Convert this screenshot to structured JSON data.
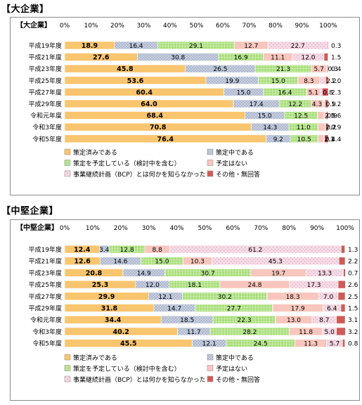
{
  "headings": {
    "large": "【大企業】",
    "mid": "【中堅企業】"
  },
  "patterns": [
    "#f9c56e",
    "#c8d0e2",
    "#a9df7b",
    "#f8c6bd",
    "#f7dbe6",
    "#d05a57"
  ],
  "chart_data": [
    {
      "type": "bar",
      "orientation": "horizontal-stacked-100",
      "title": "【大企業】",
      "xlim": [
        0,
        100
      ],
      "x_ticks": [
        "0%",
        "10%",
        "20%",
        "30%",
        "40%",
        "50%",
        "60%",
        "70%",
        "80%",
        "90%",
        "100%"
      ],
      "categories": [
        "平成19年度",
        "平成21年度",
        "平成23年度",
        "平成25年度",
        "平成27年度",
        "平成29年度",
        "令和元年度",
        "令和3年度",
        "令和5年度"
      ],
      "series": [
        {
          "name": "策定済みである",
          "color": "#f9c56e",
          "values": [
            18.9,
            27.6,
            45.8,
            53.6,
            60.4,
            64.0,
            68.4,
            70.8,
            76.4
          ]
        },
        {
          "name": "策定中である",
          "color": "#c8d0e2",
          "values": [
            16.4,
            30.8,
            26.5,
            19.9,
            15.0,
            17.4,
            15.0,
            14.3,
            9.2
          ]
        },
        {
          "name": "策定を予定している（検討中を含む）",
          "color": "#a9df7b",
          "values": [
            29.1,
            16.9,
            21.3,
            15.0,
            16.4,
            12.2,
            12.5,
            11.0,
            10.5
          ]
        },
        {
          "name": "予定はない",
          "color": "#f8c6bd",
          "values": [
            12.7,
            11.1,
            5.7,
            8.3,
            5.1,
            4.3,
            2.5,
            2.7,
            2.1
          ]
        },
        {
          "name": "事業継続計画（BCP）とは何かを知らなかった",
          "color": "#f7dbe6",
          "values": [
            22.7,
            12.0,
            0.3,
            2.2,
            0.8,
            0.9,
            0.9,
            0.2,
            0.4
          ]
        },
        {
          "name": "その他・無回答",
          "color": "#d05a57",
          "values": [
            0.3,
            1.5,
            0.4,
            1.0,
            2.3,
            1.2,
            0.6,
            0.9,
            1.4
          ]
        }
      ],
      "labels": [
        [
          "18.9",
          "16.4",
          "29.1",
          "12.7",
          "22.7",
          "0.3"
        ],
        [
          "27.6",
          "30.8",
          "16.9",
          "11.1",
          "12.0",
          "1.5"
        ],
        [
          "45.8",
          "26.5",
          "21.3",
          "5.7",
          "0.3",
          "0.4"
        ],
        [
          "53.6",
          "19.9",
          "15.0",
          "8.3",
          "2.2",
          "1.0"
        ],
        [
          "60.4",
          "15.0",
          "16.4",
          "5.1",
          "0.8",
          "2.3"
        ],
        [
          "64.0",
          "17.4",
          "12.2",
          "4.3",
          "0.9",
          "1.2"
        ],
        [
          "68.4",
          "15.0",
          "12.5",
          "2.5",
          "0.9",
          "0.6"
        ],
        [
          "70.8",
          "14.3",
          "11.0",
          "2.7",
          "0.2",
          "0.9"
        ],
        [
          "76.4",
          "9.2",
          "10.5",
          "2.1",
          "0.4",
          "1.4"
        ]
      ],
      "legend": "bottom",
      "grid": false
    },
    {
      "type": "bar",
      "orientation": "horizontal-stacked-100",
      "title": "【中堅企業】",
      "xlim": [
        0,
        100
      ],
      "x_ticks": [
        "0%",
        "10%",
        "20%",
        "30%",
        "40%",
        "50%",
        "60%",
        "70%",
        "80%",
        "90%",
        "100%"
      ],
      "categories": [
        "平成19年度",
        "平成21年度",
        "平成23年度",
        "平成25年度",
        "平成27年度",
        "平成29年度",
        "令和元年度",
        "令和3年度",
        "令和5年度"
      ],
      "series": [
        {
          "name": "策定済みである",
          "color": "#f9c56e",
          "values": [
            12.4,
            12.6,
            20.8,
            25.3,
            29.9,
            31.8,
            34.4,
            40.2,
            45.5
          ]
        },
        {
          "name": "策定中である",
          "color": "#c8d0e2",
          "values": [
            3.4,
            14.6,
            14.9,
            12.0,
            12.1,
            14.7,
            18.5,
            11.7,
            12.1
          ]
        },
        {
          "name": "策定を予定している（検討中を含む）",
          "color": "#a9df7b",
          "values": [
            12.8,
            15.0,
            30.7,
            18.1,
            30.2,
            27.7,
            22.3,
            28.2,
            24.5
          ]
        },
        {
          "name": "予定はない",
          "color": "#f8c6bd",
          "values": [
            8.8,
            10.3,
            19.7,
            24.8,
            18.3,
            17.9,
            13.0,
            11.8,
            11.3
          ]
        },
        {
          "name": "事業継続計画（BCP）とは何かを知らなかった",
          "color": "#f7dbe6",
          "values": [
            61.2,
            45.3,
            13.3,
            17.3,
            7.0,
            6.4,
            8.7,
            5.0,
            5.7
          ]
        },
        {
          "name": "その他・無回答",
          "color": "#d05a57",
          "values": [
            1.3,
            2.2,
            0.7,
            2.6,
            2.5,
            1.5,
            3.1,
            3.2,
            0.8
          ]
        }
      ],
      "labels": [
        [
          "12.4",
          "3.4",
          "12.8",
          "8.8",
          "61.2",
          "1.3"
        ],
        [
          "12.6",
          "14.6",
          "15.0",
          "10.3",
          "45.3",
          "2.2"
        ],
        [
          "20.8",
          "14.9",
          "30.7",
          "19.7",
          "13.3",
          "0.7"
        ],
        [
          "25.3",
          "12.0",
          "18.1",
          "24.8",
          "17.3",
          "2.6"
        ],
        [
          "29.9",
          "12.1",
          "30.2",
          "18.3",
          "7.0",
          "2.5"
        ],
        [
          "31.8",
          "14.7",
          "27.7",
          "17.9",
          "6.4",
          "1.5"
        ],
        [
          "34.4",
          "18.5",
          "22.3",
          "13.0",
          "8.7",
          "3.1"
        ],
        [
          "40.2",
          "11.7",
          "28.2",
          "11.8",
          "5.0",
          "3.2"
        ],
        [
          "45.5",
          "12.1",
          "24.5",
          "11.3",
          "5.7",
          "0.8"
        ]
      ],
      "legend": "bottom",
      "grid": false
    }
  ]
}
